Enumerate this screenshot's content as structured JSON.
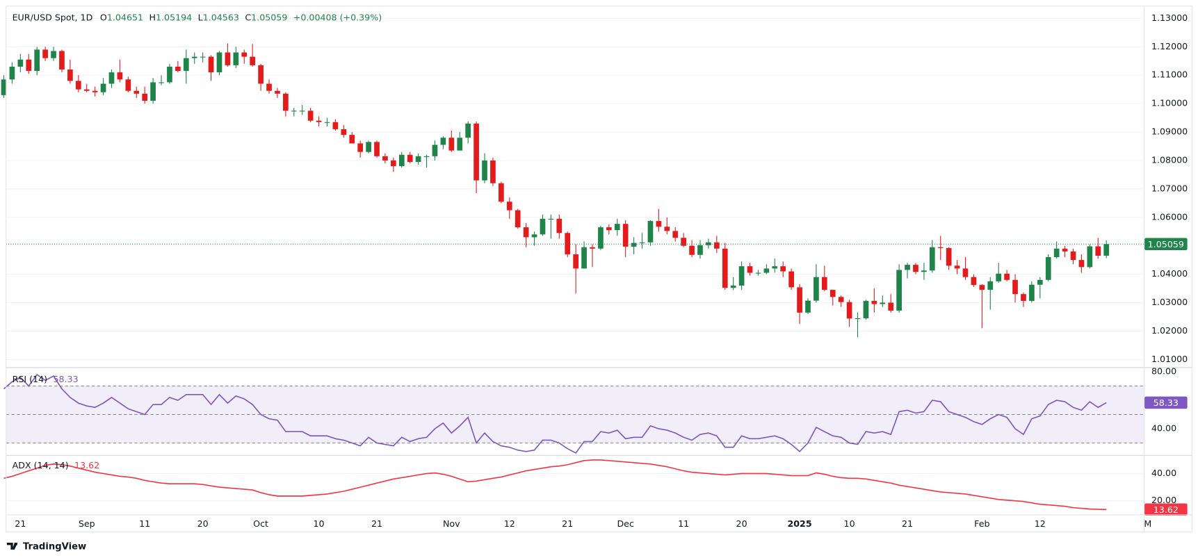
{
  "chart_data": [
    {
      "type": "candlestick",
      "title": "EUR/USD Spot, 1D",
      "ohlc_labels": [
        "O",
        "H",
        "L",
        "C"
      ],
      "change": "+0.00408 (+0.39%)",
      "categories": [
        null,
        null,
        "21",
        null,
        null,
        null,
        null,
        null,
        null,
        null,
        "Sep",
        null,
        null,
        null,
        null,
        null,
        null,
        "11",
        null,
        null,
        null,
        null,
        null,
        null,
        "20",
        null,
        null,
        null,
        null,
        null,
        null,
        "Oct",
        null,
        null,
        null,
        null,
        null,
        null,
        "10",
        null,
        null,
        null,
        null,
        null,
        null,
        "21",
        null,
        null,
        null,
        null,
        null,
        null,
        null,
        null,
        "Nov",
        null,
        null,
        null,
        null,
        null,
        null,
        "12",
        null,
        null,
        null,
        null,
        null,
        null,
        "21",
        null,
        null,
        null,
        null,
        null,
        null,
        "Dec",
        null,
        null,
        null,
        null,
        null,
        null,
        "11",
        null,
        null,
        null,
        null,
        null,
        null,
        "20",
        null,
        null,
        null,
        null,
        null,
        null,
        "2025",
        null,
        null,
        null,
        null,
        null,
        "10",
        null,
        null,
        null,
        null,
        null,
        null,
        "21",
        null,
        null,
        null,
        null,
        null,
        null,
        null,
        null,
        "Feb",
        null,
        null,
        null,
        null,
        null,
        null,
        "12",
        null,
        null,
        null,
        null,
        null,
        null,
        null,
        null,
        null,
        null,
        null,
        null,
        "M"
      ],
      "open": [
        1.103,
        1.1085,
        1.113,
        1.1155,
        1.1115,
        1.119,
        1.116,
        1.1185,
        1.112,
        1.108,
        1.105,
        1.1045,
        1.104,
        1.107,
        1.111,
        1.1085,
        1.1045,
        1.1035,
        1.101,
        1.1075,
        1.1075,
        1.113,
        1.1115,
        1.116,
        1.1165,
        1.1165,
        1.111,
        1.118,
        1.1135,
        1.118,
        1.1165,
        1.1135,
        1.107,
        1.1045,
        1.1035,
        1.0975,
        1.0975,
        1.0975,
        1.094,
        1.0935,
        1.0935,
        1.091,
        1.089,
        1.086,
        1.083,
        1.0865,
        1.0815,
        1.08,
        1.078,
        1.082,
        1.0795,
        1.0815,
        1.0815,
        1.0855,
        1.088,
        1.0835,
        1.088,
        1.093,
        1.073,
        1.08,
        1.072,
        1.0655,
        1.0625,
        1.0565,
        1.053,
        1.054,
        1.0595,
        1.0595,
        1.0545,
        1.047,
        1.042,
        1.0495,
        1.049,
        1.0565,
        1.0555,
        1.0577,
        1.0497,
        1.051,
        1.0512,
        1.0587,
        1.0567,
        1.0552,
        1.0528,
        1.05,
        1.0468,
        1.0502,
        1.0512,
        1.049,
        1.0352,
        1.036,
        1.0428,
        1.0405,
        1.0405,
        1.042,
        1.0428,
        1.041,
        1.0354,
        1.0265,
        1.0307,
        1.039,
        1.0345,
        1.032,
        1.0302,
        1.0244,
        1.0245,
        1.0306,
        1.0295,
        1.03,
        1.0272,
        1.0415,
        1.0433,
        1.0408,
        1.0413,
        1.0495,
        1.0492,
        1.043,
        1.042,
        1.039,
        1.0362,
        1.0345,
        1.0375,
        1.0402,
        1.038,
        1.033,
        1.0306,
        1.0363,
        1.038,
        1.046,
        1.049,
        1.048,
        1.045,
        1.0425,
        1.0498,
        1.04651,
        null,
        null,
        null,
        null,
        null
      ],
      "high": [
        1.11,
        1.1145,
        1.1175,
        1.1175,
        1.12,
        1.12,
        1.12,
        1.119,
        1.1155,
        1.11,
        1.107,
        1.106,
        1.109,
        1.112,
        1.1155,
        1.1095,
        1.106,
        1.106,
        1.109,
        1.11,
        1.114,
        1.115,
        1.119,
        1.118,
        1.118,
        1.117,
        1.1185,
        1.1212,
        1.12,
        1.119,
        1.121,
        1.114,
        1.1085,
        1.1055,
        1.104,
        1.0985,
        1.0995,
        1.0985,
        1.0955,
        1.095,
        1.0945,
        1.0925,
        1.09,
        1.087,
        1.087,
        1.087,
        1.0825,
        1.081,
        1.083,
        1.083,
        1.0825,
        1.082,
        1.087,
        1.0885,
        1.0905,
        1.09,
        1.0937,
        1.0937,
        1.0825,
        1.081,
        1.0725,
        1.067,
        1.063,
        1.058,
        1.055,
        1.061,
        1.061,
        1.061,
        1.055,
        1.0505,
        1.0515,
        1.0505,
        1.057,
        1.0575,
        1.0595,
        1.059,
        1.053,
        1.0545,
        1.059,
        1.063,
        1.06,
        1.0565,
        1.0545,
        1.052,
        1.052,
        1.0525,
        1.0535,
        1.051,
        1.039,
        1.0445,
        1.044,
        1.0415,
        1.0435,
        1.0455,
        1.0445,
        1.042,
        1.0365,
        1.0315,
        1.0435,
        1.043,
        1.0345,
        1.0325,
        1.031,
        1.0265,
        1.031,
        1.035,
        1.0325,
        1.033,
        1.0435,
        1.044,
        1.044,
        1.044,
        1.052,
        1.0535,
        1.0495,
        1.045,
        1.046,
        1.04,
        1.0365,
        1.039,
        1.044,
        1.0415,
        1.04,
        1.0335,
        1.0375,
        1.039,
        1.047,
        1.0515,
        1.05,
        1.049,
        1.047,
        1.0505,
        1.0528,
        1.05194,
        null,
        null,
        null,
        null,
        null
      ],
      "low": [
        1.102,
        1.107,
        1.111,
        1.1105,
        1.11,
        1.115,
        1.115,
        1.111,
        1.107,
        1.104,
        1.104,
        1.1025,
        1.103,
        1.1055,
        1.1075,
        1.104,
        1.102,
        1.1,
        1.1,
        1.1065,
        1.107,
        1.111,
        1.107,
        1.114,
        1.1145,
        1.108,
        1.11,
        1.113,
        1.1125,
        1.114,
        1.113,
        1.1045,
        1.1035,
        1.102,
        1.0955,
        1.0955,
        1.096,
        1.0935,
        1.092,
        1.092,
        1.0905,
        1.088,
        1.086,
        1.081,
        1.0825,
        1.081,
        1.079,
        1.076,
        1.0775,
        1.079,
        1.0785,
        1.0775,
        1.08,
        1.084,
        1.083,
        1.0835,
        1.086,
        1.0685,
        1.072,
        1.071,
        1.065,
        1.0595,
        1.056,
        1.0495,
        1.05,
        1.0535,
        1.0525,
        1.0525,
        1.046,
        1.0332,
        1.0425,
        1.0425,
        1.0485,
        1.054,
        1.0535,
        1.046,
        1.047,
        1.049,
        1.05,
        1.055,
        1.054,
        1.0515,
        1.0495,
        1.046,
        1.0455,
        1.049,
        1.0475,
        1.0345,
        1.0345,
        1.0345,
        1.0395,
        1.0395,
        1.04,
        1.0405,
        1.039,
        1.0345,
        1.0225,
        1.026,
        1.03,
        1.034,
        1.029,
        1.0285,
        1.0215,
        1.0178,
        1.024,
        1.0265,
        1.0285,
        1.0265,
        1.0265,
        1.0385,
        1.04,
        1.038,
        1.0405,
        1.045,
        1.0415,
        1.04,
        1.038,
        1.0355,
        1.021,
        1.0275,
        1.037,
        1.0375,
        1.03,
        1.0285,
        1.03,
        1.0315,
        1.0375,
        1.0455,
        1.046,
        1.0435,
        1.0405,
        1.042,
        1.0455,
        1.04563,
        null,
        null,
        null,
        null,
        null
      ],
      "close": [
        1.1085,
        1.113,
        1.1155,
        1.1115,
        1.119,
        1.116,
        1.1185,
        1.112,
        1.108,
        1.105,
        1.1045,
        1.104,
        1.107,
        1.111,
        1.1085,
        1.1045,
        1.1035,
        1.101,
        1.1075,
        1.1075,
        1.113,
        1.1115,
        1.116,
        1.1165,
        1.1165,
        1.111,
        1.118,
        1.1135,
        1.118,
        1.1165,
        1.1135,
        1.107,
        1.1045,
        1.1035,
        1.0975,
        1.0975,
        1.0975,
        1.094,
        1.0935,
        1.0935,
        1.091,
        1.089,
        1.086,
        1.083,
        1.0865,
        1.0815,
        1.08,
        1.078,
        1.082,
        1.0795,
        1.0815,
        1.0815,
        1.0855,
        1.088,
        1.0835,
        1.088,
        1.093,
        1.073,
        1.08,
        1.072,
        1.0655,
        1.0625,
        1.0565,
        1.053,
        1.054,
        1.0595,
        1.0595,
        1.0545,
        1.047,
        1.042,
        1.0495,
        1.049,
        1.0565,
        1.0555,
        1.0577,
        1.0497,
        1.051,
        1.0512,
        1.0587,
        1.0567,
        1.0552,
        1.0528,
        1.05,
        1.0468,
        1.0502,
        1.0512,
        1.049,
        1.0352,
        1.036,
        1.0428,
        1.0405,
        1.0405,
        1.042,
        1.0428,
        1.041,
        1.0354,
        1.0265,
        1.0307,
        1.039,
        1.0345,
        1.032,
        1.0302,
        1.0244,
        1.0245,
        1.0306,
        1.0295,
        1.03,
        1.0272,
        1.0415,
        1.0433,
        1.0408,
        1.0413,
        1.0495,
        1.0492,
        1.043,
        1.042,
        1.039,
        1.0362,
        1.0345,
        1.0375,
        1.0402,
        1.038,
        1.033,
        1.0306,
        1.0363,
        1.038,
        1.046,
        1.049,
        1.048,
        1.045,
        1.0425,
        1.0498,
        1.0465,
        1.05059,
        null,
        null,
        null,
        null,
        null
      ],
      "up_color": "#1e8449",
      "down_color": "#e41b1b",
      "ylim": [
        1.0073,
        1.1343
      ],
      "yticks": [
        {
          "value": 1.01,
          "label": "1.01000"
        },
        {
          "value": 1.02,
          "label": "1.02000"
        },
        {
          "value": 1.03,
          "label": "1.03000"
        },
        {
          "value": 1.04,
          "label": "1.04000"
        },
        {
          "value": 1.05,
          "label": "1.05000"
        },
        {
          "value": 1.06,
          "label": "1.06000"
        },
        {
          "value": 1.07,
          "label": "1.07000"
        },
        {
          "value": 1.08,
          "label": "1.08000"
        },
        {
          "value": 1.09,
          "label": "1.09000"
        },
        {
          "value": 1.1,
          "label": "1.10000"
        },
        {
          "value": 1.11,
          "label": "1.11000"
        },
        {
          "value": 1.12,
          "label": "1.12000"
        },
        {
          "value": 1.13,
          "label": "1.13000"
        }
      ],
      "grid": true,
      "last_price_line": true
    },
    {
      "type": "line",
      "title": "RSI (14)",
      "values": [
        68,
        73,
        76,
        70,
        78,
        74,
        77,
        68,
        62,
        58,
        56,
        55,
        58,
        62,
        58,
        54,
        52,
        50,
        57,
        57,
        62,
        60,
        64,
        64,
        64,
        57,
        64,
        58,
        63,
        61,
        57,
        50,
        47,
        46,
        38,
        38,
        38,
        35,
        35,
        35,
        33,
        32,
        30,
        28,
        34,
        30,
        29,
        28,
        34,
        31,
        33,
        34,
        40,
        44,
        37,
        42,
        48,
        30,
        37,
        31,
        28,
        27,
        25,
        24,
        25,
        32,
        32,
        30,
        26,
        23,
        31,
        31,
        38,
        37,
        39,
        33,
        34,
        34,
        42,
        40,
        39,
        37,
        34,
        32,
        36,
        37,
        35,
        27,
        27,
        35,
        33,
        33,
        34,
        35,
        33,
        29,
        24,
        30,
        41,
        38,
        35,
        34,
        30,
        29,
        38,
        37,
        38,
        36,
        52,
        53,
        51,
        52,
        60,
        59,
        52,
        50,
        48,
        45,
        43,
        47,
        50,
        48,
        40,
        36,
        47,
        49,
        57,
        60,
        59,
        55,
        53,
        59,
        55,
        58.33,
        null,
        null,
        null,
        null,
        null
      ],
      "color": "#7e57c2",
      "ylim": [
        21.6,
        82.7
      ],
      "yticks": [
        {
          "value": 80,
          "label": "80.00"
        },
        {
          "value": 40,
          "label": "40.00"
        }
      ],
      "bands": [
        30,
        50,
        70
      ],
      "grid": true
    },
    {
      "type": "line",
      "title": "ADX (14, 14)",
      "values": [
        36.5,
        38,
        40,
        42,
        44,
        46,
        47,
        46.5,
        45.5,
        44,
        42.5,
        41,
        40,
        39,
        38,
        37.5,
        36.5,
        35,
        34,
        33,
        32.5,
        32.5,
        32.5,
        32.5,
        32,
        31,
        30,
        29.5,
        29,
        28.5,
        28,
        26,
        24.5,
        23.5,
        23.5,
        23.5,
        23.5,
        24,
        24.5,
        25,
        26,
        27,
        28.5,
        30,
        31.5,
        33,
        34.5,
        36,
        37,
        38,
        39,
        40,
        40.5,
        39.5,
        38,
        36,
        34,
        34.5,
        35.5,
        36.5,
        37.5,
        39,
        40.5,
        42,
        43,
        44,
        45,
        45.5,
        46.5,
        48,
        49.5,
        50,
        50,
        49.5,
        49,
        48.5,
        48,
        47.5,
        47,
        46,
        45,
        43.5,
        42,
        41,
        40.5,
        40,
        39.5,
        39,
        39.5,
        40,
        40,
        40,
        40,
        39.5,
        39,
        38.5,
        38.5,
        38.5,
        40.5,
        39.5,
        38,
        37,
        36.5,
        36.5,
        36,
        35,
        34,
        33,
        31.5,
        30.5,
        29.5,
        28.5,
        27.5,
        26.5,
        26,
        25.5,
        25,
        24,
        23,
        22,
        21,
        20.5,
        20,
        19.5,
        18.5,
        17.5,
        17,
        16.5,
        16,
        15,
        14.5,
        14,
        13.8,
        13.62,
        null,
        null,
        null,
        null,
        null
      ],
      "color": "#f23645",
      "ylim": [
        -2.9,
        53.1
      ],
      "yticks": [
        {
          "value": 40,
          "label": "40.00"
        },
        {
          "value": 20,
          "label": "20.00"
        }
      ],
      "grid": true
    }
  ],
  "footer": {
    "logo_text": "TradingView"
  }
}
